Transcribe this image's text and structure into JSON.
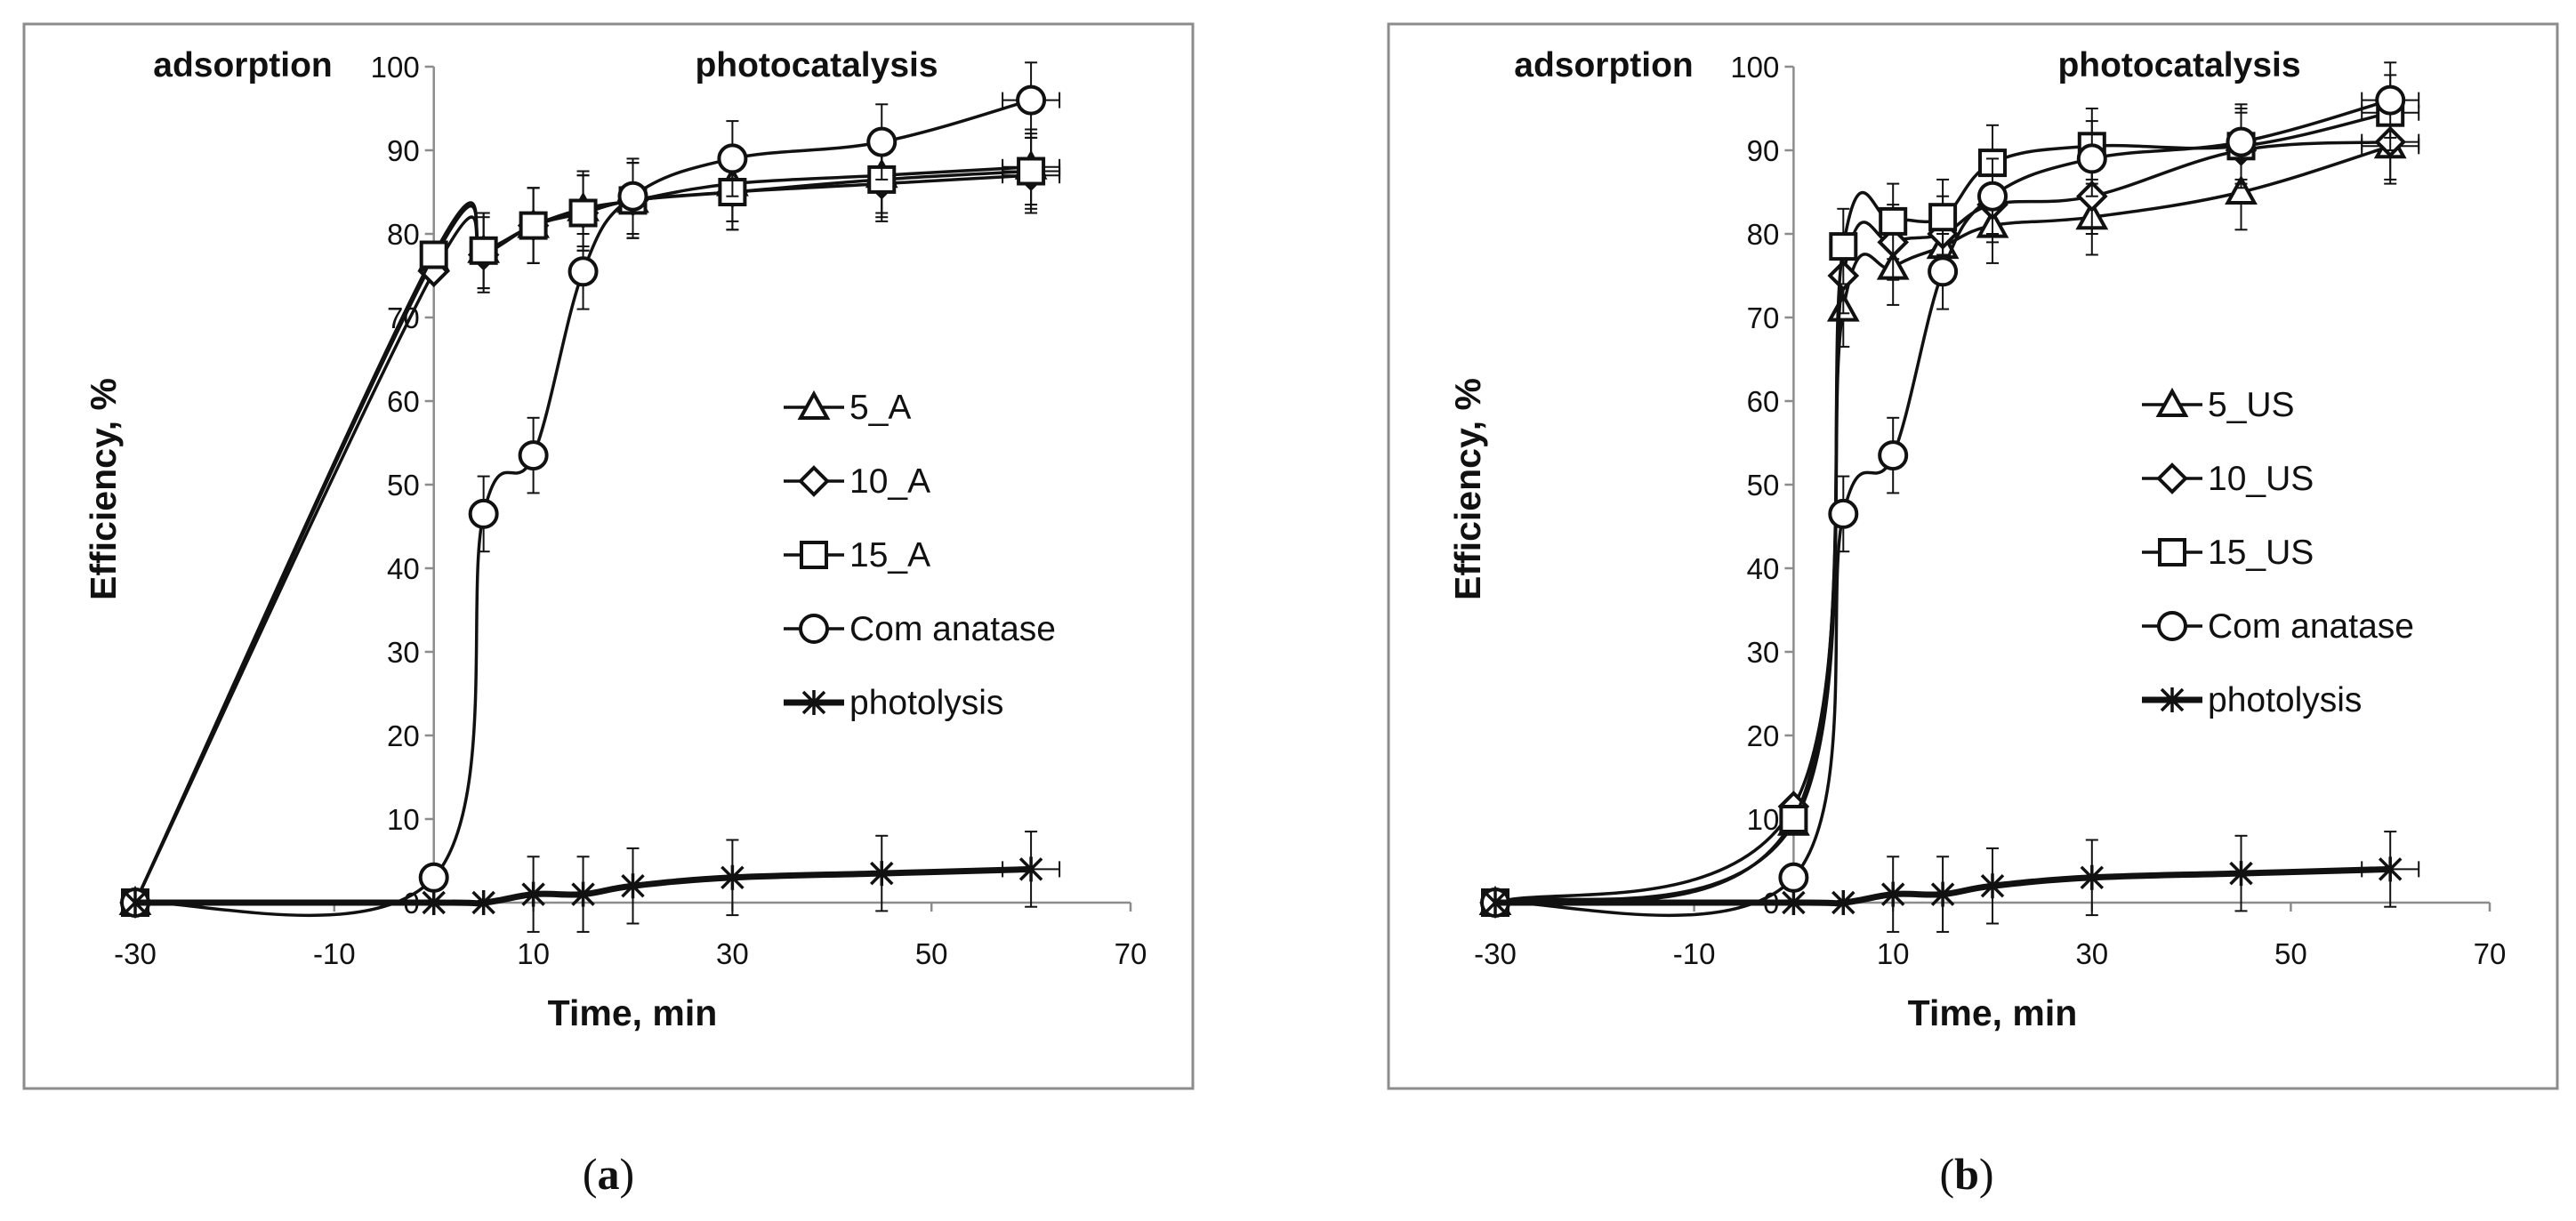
{
  "chart_data": [
    {
      "panel_label": "(a)",
      "panel_letter": "a",
      "type": "line",
      "title": "",
      "xlabel": "Time, min",
      "ylabel": "Efficiency, %",
      "region_labels": {
        "left": "adsorption",
        "right": "photocatalysis"
      },
      "xlim": [
        -30,
        70
      ],
      "ylim": [
        0,
        100
      ],
      "xticks": [
        -30,
        -10,
        10,
        30,
        50,
        70
      ],
      "yticks": [
        0,
        10,
        20,
        30,
        40,
        50,
        60,
        70,
        80,
        90,
        100
      ],
      "x": [
        -30,
        0,
        5,
        10,
        15,
        20,
        30,
        45,
        60
      ],
      "legend_position": "right-center",
      "series": [
        {
          "name": "5_A",
          "marker": "triangle",
          "values": [
            0,
            77,
            78,
            81,
            83,
            84,
            86,
            87,
            88
          ]
        },
        {
          "name": "10_A",
          "marker": "diamond",
          "values": [
            0,
            75.5,
            77.5,
            81,
            82.5,
            84,
            85,
            86,
            87
          ]
        },
        {
          "name": "15_A",
          "marker": "square",
          "values": [
            0,
            77.5,
            78,
            81,
            82.5,
            84,
            85,
            86.5,
            87.5
          ]
        },
        {
          "name": "Com anatase",
          "marker": "circle",
          "values": [
            0,
            3,
            46.5,
            53.5,
            75.5,
            84.5,
            89,
            91,
            96
          ]
        },
        {
          "name": "photolysis",
          "marker": "asterisk",
          "thick": true,
          "values": [
            0,
            0,
            0,
            1,
            1,
            2,
            3,
            3.5,
            4
          ]
        }
      ]
    },
    {
      "panel_label": "(b)",
      "panel_letter": "b",
      "type": "line",
      "title": "",
      "xlabel": "Time, min",
      "ylabel": "Efficiency, %",
      "region_labels": {
        "left": "adsorption",
        "right": "photocatalysis"
      },
      "xlim": [
        -30,
        70
      ],
      "ylim": [
        0,
        100
      ],
      "xticks": [
        -30,
        -10,
        10,
        30,
        50,
        70
      ],
      "yticks": [
        0,
        10,
        20,
        30,
        40,
        50,
        60,
        70,
        80,
        90,
        100
      ],
      "x": [
        -30,
        0,
        5,
        10,
        15,
        20,
        30,
        45,
        60
      ],
      "legend_position": "right-center",
      "series": [
        {
          "name": "5_US",
          "marker": "triangle",
          "values": [
            0,
            9.5,
            71,
            76,
            78.5,
            81,
            82,
            85,
            90.5
          ]
        },
        {
          "name": "10_US",
          "marker": "diamond",
          "values": [
            0,
            11.5,
            75,
            79,
            80,
            83.5,
            84.5,
            90,
            91
          ]
        },
        {
          "name": "15_US",
          "marker": "square",
          "values": [
            0,
            10,
            78.5,
            81.5,
            82,
            88.5,
            90.5,
            90.5,
            94.5
          ]
        },
        {
          "name": "Com anatase",
          "marker": "circle",
          "values": [
            0,
            3,
            46.5,
            53.5,
            75.5,
            84.5,
            89,
            91,
            96
          ]
        },
        {
          "name": "photolysis",
          "marker": "asterisk",
          "thick": true,
          "values": [
            0,
            0,
            0,
            1,
            1,
            2,
            3,
            3.5,
            4
          ]
        }
      ]
    }
  ]
}
